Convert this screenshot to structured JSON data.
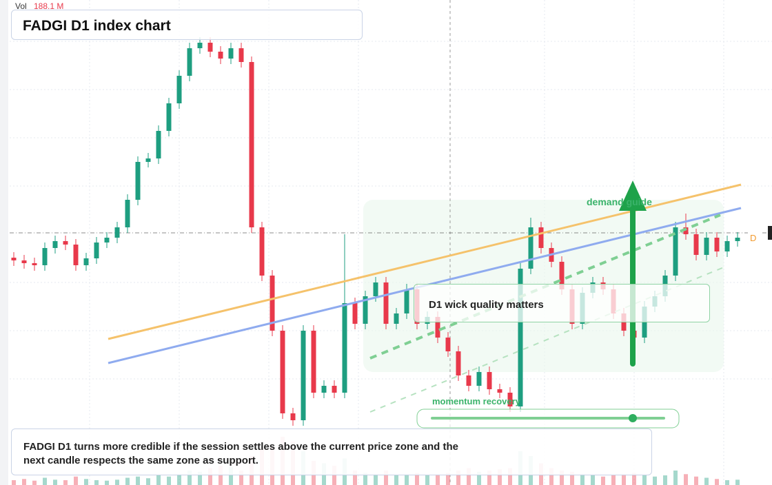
{
  "chart_data": {
    "type": "candlestick",
    "title": "FADGI D1 index chart",
    "volume_label": "Vol",
    "volume_value": "188.1 M",
    "annotation": "D1 wick quality matters",
    "guide_label": "demand guide",
    "momentum_label": "momentum recovery",
    "marker": "D",
    "note": "FADGI D1 turns more credible if the session settles above the current price zone and the next candle respects the same zone as support.",
    "up_color": "#1e9e80",
    "down_color": "#e8394b",
    "ylim": [
      0,
      704
    ],
    "volume_ylim": [
      0,
      400
    ],
    "open": [
      330,
      326,
      322,
      319,
      344,
      354,
      349,
      319,
      329,
      352,
      359,
      374,
      414,
      469,
      474,
      514,
      554,
      594,
      634,
      642,
      629,
      619,
      634,
      614,
      374,
      304,
      224,
      104,
      94,
      224,
      134,
      144,
      134,
      264,
      234,
      274,
      294,
      234,
      249,
      284,
      234,
      244,
      214,
      194,
      159,
      144,
      164,
      139,
      134,
      114,
      314,
      374,
      344,
      324,
      284,
      234,
      279,
      294,
      284,
      249,
      224,
      214,
      259,
      274,
      304,
      374,
      364,
      334,
      359,
      339,
      354
    ],
    "high": [
      338,
      334,
      330,
      352,
      362,
      362,
      357,
      337,
      360,
      367,
      382,
      422,
      477,
      482,
      522,
      562,
      602,
      642,
      650,
      650,
      637,
      642,
      642,
      622,
      382,
      312,
      232,
      112,
      232,
      232,
      152,
      152,
      364,
      272,
      282,
      302,
      302,
      257,
      292,
      292,
      252,
      252,
      222,
      202,
      167,
      172,
      172,
      147,
      142,
      322,
      388,
      382,
      352,
      332,
      292,
      287,
      302,
      302,
      292,
      257,
      232,
      267,
      282,
      312,
      382,
      394,
      372,
      367,
      367,
      362,
      367
    ],
    "low": [
      318,
      314,
      311,
      311,
      336,
      341,
      311,
      311,
      321,
      344,
      351,
      366,
      406,
      461,
      466,
      506,
      546,
      586,
      626,
      621,
      611,
      611,
      606,
      366,
      296,
      216,
      96,
      86,
      86,
      126,
      126,
      126,
      126,
      226,
      226,
      266,
      226,
      226,
      241,
      226,
      226,
      206,
      186,
      151,
      136,
      136,
      131,
      126,
      106,
      106,
      306,
      336,
      316,
      276,
      226,
      226,
      271,
      276,
      241,
      216,
      184,
      206,
      251,
      266,
      296,
      356,
      326,
      326,
      331,
      331,
      346
    ],
    "close": [
      326,
      322,
      319,
      344,
      354,
      349,
      319,
      329,
      352,
      359,
      374,
      414,
      469,
      474,
      514,
      554,
      594,
      634,
      642,
      629,
      619,
      634,
      614,
      374,
      304,
      224,
      104,
      94,
      224,
      134,
      144,
      134,
      264,
      234,
      274,
      294,
      234,
      249,
      284,
      234,
      244,
      214,
      194,
      159,
      144,
      164,
      139,
      134,
      114,
      314,
      374,
      344,
      324,
      284,
      234,
      279,
      294,
      284,
      249,
      224,
      214,
      259,
      274,
      304,
      374,
      364,
      334,
      359,
      339,
      354,
      359
    ],
    "volume": [
      20,
      25,
      18,
      30,
      22,
      20,
      35,
      25,
      20,
      18,
      22,
      30,
      35,
      28,
      40,
      35,
      45,
      60,
      55,
      70,
      80,
      75,
      60,
      120,
      150,
      160,
      200,
      180,
      140,
      100,
      90,
      80,
      110,
      60,
      50,
      45,
      60,
      40,
      45,
      50,
      40,
      45,
      50,
      60,
      70,
      55,
      60,
      65,
      70,
      140,
      120,
      90,
      70,
      60,
      55,
      45,
      40,
      35,
      40,
      45,
      50,
      40,
      35,
      40,
      60,
      45,
      35,
      30,
      25,
      20,
      22
    ]
  }
}
